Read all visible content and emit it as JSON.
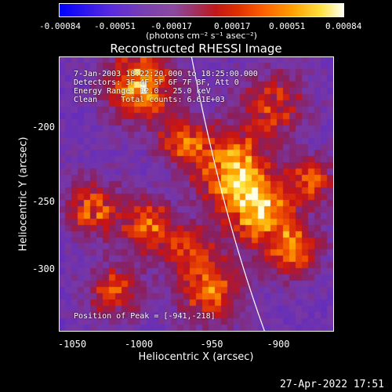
{
  "colorbar": {
    "ticks": [
      "-0.00084",
      "-0.00051",
      "-0.00017",
      "0.00017",
      "0.00051",
      "0.00084"
    ],
    "unit": "(photons cm⁻² s⁻¹ asec⁻²)"
  },
  "title": "Reconstructed RHESSI Image",
  "info": {
    "line1": "7-Jan-2003 18:22:20.000 to 18:25:00.000",
    "line2": "Detectors: 3F 4F 5F 6F 7F 8F, Att 0",
    "line3": "Energy Range: 12.0 - 25.0 keV",
    "line4": "Clean     Total counts: 6.61E+03",
    "peak": "Position of Peak = [-941,-218]"
  },
  "axes": {
    "xlabel": "Heliocentric X (arcsec)",
    "ylabel": "Heliocentric Y (arcsec)",
    "xticks": [
      "-1050",
      "-1000",
      "-950",
      "-900"
    ],
    "yticks": [
      "-200",
      "-250",
      "-300"
    ]
  },
  "timestamp": "27-Apr-2022 17:51",
  "colors": {
    "background": "#000000",
    "foreground": "#ffffff"
  }
}
